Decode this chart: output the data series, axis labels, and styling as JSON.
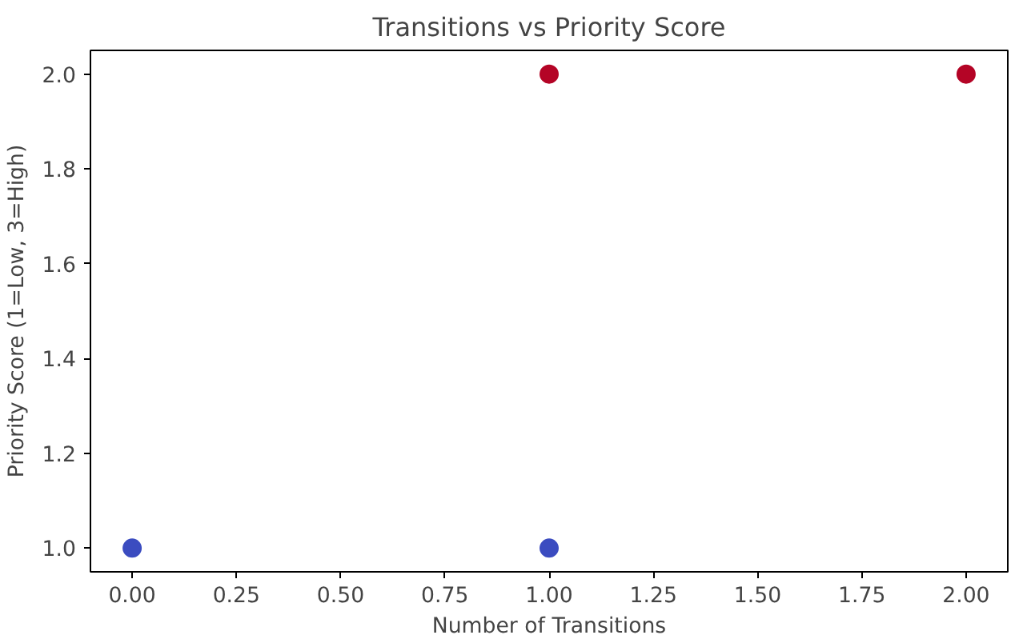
{
  "chart_data": {
    "type": "scatter",
    "title": "Transitions vs Priority Score",
    "xlabel": "Number of Transitions",
    "ylabel": "Priority Score (1=Low, 3=High)",
    "x": [
      0,
      1,
      1,
      2
    ],
    "values": [
      1,
      1,
      2,
      2
    ],
    "colors": [
      "#3b4cc0",
      "#3b4cc0",
      "#b40426",
      "#b40426"
    ],
    "xlim": [
      -0.1,
      2.1
    ],
    "ylim": [
      0.95,
      2.05
    ],
    "xticks": [
      {
        "value": 0,
        "label": "0.00"
      },
      {
        "value": 0.25,
        "label": "0.25"
      },
      {
        "value": 0.5,
        "label": "0.50"
      },
      {
        "value": 0.75,
        "label": "0.75"
      },
      {
        "value": 1,
        "label": "1.00"
      },
      {
        "value": 1.25,
        "label": "1.25"
      },
      {
        "value": 1.5,
        "label": "1.50"
      },
      {
        "value": 1.75,
        "label": "1.75"
      },
      {
        "value": 2,
        "label": "2.00"
      }
    ],
    "yticks": [
      {
        "value": 1,
        "label": "1.0"
      },
      {
        "value": 1.2,
        "label": "1.2"
      },
      {
        "value": 1.4,
        "label": "1.4"
      },
      {
        "value": 1.6,
        "label": "1.6"
      },
      {
        "value": 1.8,
        "label": "1.8"
      },
      {
        "value": 2,
        "label": "2.0"
      }
    ],
    "marker": "circle",
    "grid": false
  }
}
